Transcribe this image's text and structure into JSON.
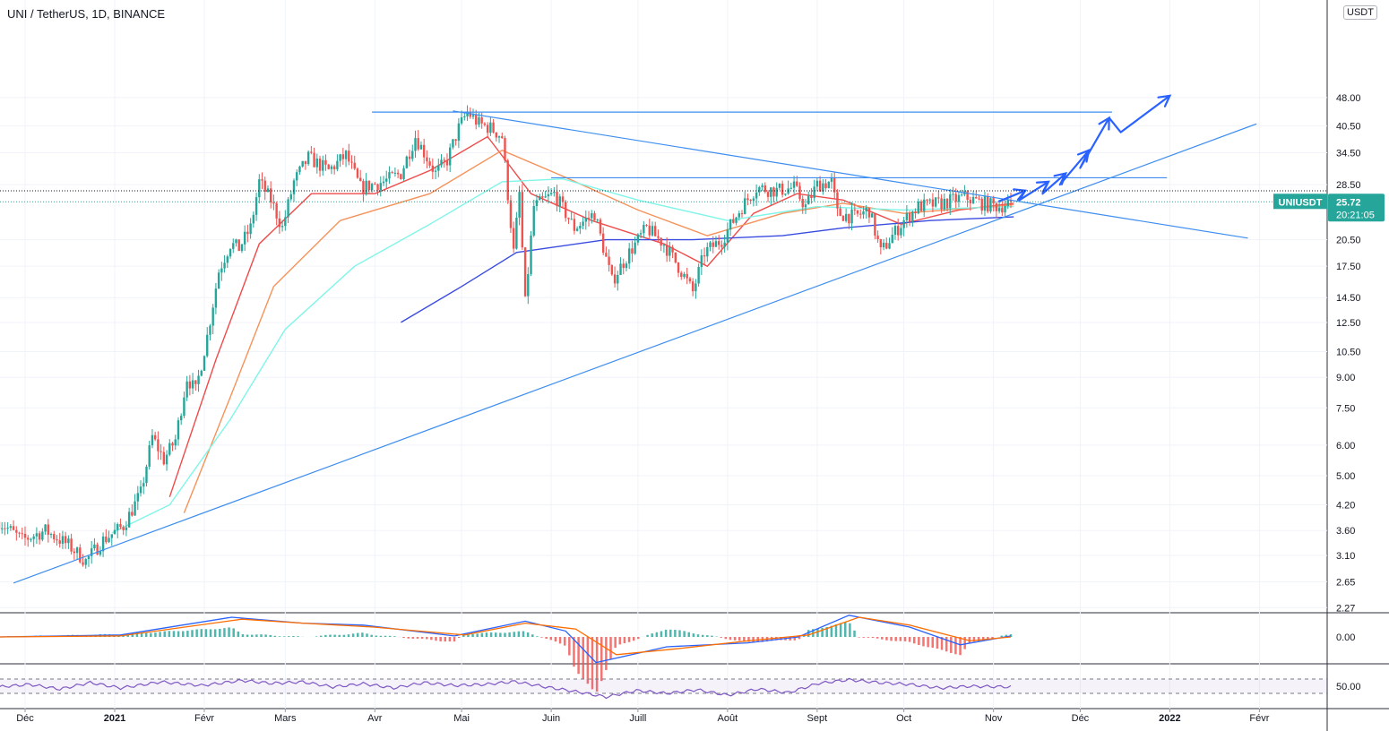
{
  "title": "UNI / TetherUS, 1D, BINANCE",
  "unit_button": "USDT",
  "colors": {
    "up": "#26a69a",
    "down": "#ef5350",
    "bg": "#ffffff",
    "grid": "#f0f3fa",
    "ema_red": "#ef4b4b",
    "ema_orange": "#f5925a",
    "ema_cyan": "#7ff5e8",
    "ma_blue": "#3a4ce0",
    "trend": "#3d8ef0",
    "arrows": "#2962ff",
    "macd": "#2962ff",
    "signal": "#ff6d00",
    "rsi": "#7e57c2"
  },
  "chart_data": [
    {
      "type": "candlestick",
      "symbol": "UNIUSDT",
      "price_scale": "log",
      "x_ticks": [
        "Déc",
        "2021",
        "Févr",
        "Mars",
        "Avr",
        "Mai",
        "Juin",
        "Juill",
        "Août",
        "Sept",
        "Oct",
        "Nov",
        "Déc",
        "2022",
        "Févr"
      ],
      "x_tick_dates": [
        "2020-12-01",
        "2021-01-01",
        "2021-02-01",
        "2021-03-01",
        "2021-04-01",
        "2021-05-01",
        "2021-06-01",
        "2021-07-01",
        "2021-08-01",
        "2021-09-01",
        "2021-10-01",
        "2021-11-01",
        "2021-12-01",
        "2022-01-01",
        "2022-02-01"
      ],
      "y_ticks": [
        "48.00",
        "40.50",
        "34.50",
        "28.50",
        "20.50",
        "17.50",
        "14.50",
        "12.50",
        "10.50",
        "9.00",
        "7.50",
        "6.00",
        "5.00",
        "4.20",
        "3.60",
        "3.10",
        "2.65",
        "2.27"
      ],
      "ylim": [
        2.27,
        60
      ],
      "last_price": {
        "label": "UNIUSDT",
        "value": "25.72",
        "countdown": "20:21:05"
      },
      "close_path": [
        [
          "2020-11-22",
          3.8
        ],
        [
          "2020-11-30",
          3.4
        ],
        [
          "2020-12-08",
          3.6
        ],
        [
          "2020-12-16",
          3.3
        ],
        [
          "2020-12-22",
          3.0
        ],
        [
          "2020-12-28",
          3.4
        ],
        [
          "2021-01-04",
          3.7
        ],
        [
          "2021-01-10",
          4.5
        ],
        [
          "2021-01-14",
          6.3
        ],
        [
          "2021-01-18",
          5.5
        ],
        [
          "2021-01-22",
          6.2
        ],
        [
          "2021-01-26",
          9.0
        ],
        [
          "2021-01-29",
          8.3
        ],
        [
          "2021-02-02",
          11.5
        ],
        [
          "2021-02-06",
          17.0
        ],
        [
          "2021-02-10",
          20.0
        ],
        [
          "2021-02-13",
          19.5
        ],
        [
          "2021-02-17",
          22.0
        ],
        [
          "2021-02-20",
          29.0
        ],
        [
          "2021-02-24",
          26.0
        ],
        [
          "2021-02-28",
          22.0
        ],
        [
          "2021-03-04",
          29.0
        ],
        [
          "2021-03-09",
          33.5
        ],
        [
          "2021-03-16",
          31.0
        ],
        [
          "2021-03-22",
          34.0
        ],
        [
          "2021-03-27",
          28.0
        ],
        [
          "2021-04-04",
          29.0
        ],
        [
          "2021-04-10",
          30.5
        ],
        [
          "2021-04-15",
          38.0
        ],
        [
          "2021-04-22",
          30.5
        ],
        [
          "2021-04-26",
          33.0
        ],
        [
          "2021-04-30",
          40.0
        ],
        [
          "2021-05-03",
          44.0
        ],
        [
          "2021-05-07",
          41.0
        ],
        [
          "2021-05-11",
          40.0
        ],
        [
          "2021-05-15",
          38.0
        ],
        [
          "2021-05-19",
          19.0
        ],
        [
          "2021-05-21",
          27.0
        ],
        [
          "2021-05-23",
          14.0
        ],
        [
          "2021-05-26",
          25.0
        ],
        [
          "2021-06-02",
          27.0
        ],
        [
          "2021-06-09",
          22.0
        ],
        [
          "2021-06-16",
          24.0
        ],
        [
          "2021-06-22",
          16.0
        ],
        [
          "2021-06-28",
          19.0
        ],
        [
          "2021-07-04",
          22.0
        ],
        [
          "2021-07-10",
          20.0
        ],
        [
          "2021-07-16",
          17.0
        ],
        [
          "2021-07-20",
          15.0
        ],
        [
          "2021-07-24",
          19.0
        ],
        [
          "2021-07-30",
          20.5
        ],
        [
          "2021-08-06",
          25.0
        ],
        [
          "2021-08-11",
          28.0
        ],
        [
          "2021-08-18",
          27.5
        ],
        [
          "2021-08-24",
          28.0
        ],
        [
          "2021-08-28",
          25.0
        ],
        [
          "2021-09-01",
          28.5
        ],
        [
          "2021-09-06",
          29.0
        ],
        [
          "2021-09-08",
          24.0
        ],
        [
          "2021-09-14",
          23.5
        ],
        [
          "2021-09-19",
          24.5
        ],
        [
          "2021-09-23",
          19.0
        ],
        [
          "2021-09-27",
          21.0
        ],
        [
          "2021-10-01",
          23.0
        ],
        [
          "2021-10-06",
          25.0
        ],
        [
          "2021-10-14",
          25.5
        ],
        [
          "2021-10-22",
          26.5
        ],
        [
          "2021-10-28",
          25.5
        ],
        [
          "2021-11-03",
          25.0
        ],
        [
          "2021-11-07",
          25.72
        ]
      ],
      "overlays": [
        {
          "name": "ema_red",
          "points": [
            [
              "2021-01-20",
              4.4
            ],
            [
              "2021-02-05",
              10.0
            ],
            [
              "2021-02-20",
              20.0
            ],
            [
              "2021-03-10",
              27.0
            ],
            [
              "2021-04-01",
              27.0
            ],
            [
              "2021-04-20",
              31.0
            ],
            [
              "2021-05-10",
              38.0
            ],
            [
              "2021-05-25",
              27.0
            ],
            [
              "2021-06-15",
              23.0
            ],
            [
              "2021-07-10",
              20.0
            ],
            [
              "2021-07-25",
              17.5
            ],
            [
              "2021-08-10",
              24.0
            ],
            [
              "2021-08-25",
              27.0
            ],
            [
              "2021-09-10",
              26.0
            ],
            [
              "2021-09-30",
              22.5
            ],
            [
              "2021-10-20",
              24.5
            ],
            [
              "2021-11-08",
              25.5
            ]
          ]
        },
        {
          "name": "ema_orange",
          "points": [
            [
              "2021-01-25",
              4.0
            ],
            [
              "2021-02-10",
              8.0
            ],
            [
              "2021-02-25",
              15.5
            ],
            [
              "2021-03-20",
              23.0
            ],
            [
              "2021-04-20",
              27.0
            ],
            [
              "2021-05-15",
              35.0
            ],
            [
              "2021-06-05",
              30.0
            ],
            [
              "2021-07-01",
              24.5
            ],
            [
              "2021-07-25",
              21.0
            ],
            [
              "2021-08-20",
              24.0
            ],
            [
              "2021-09-10",
              25.5
            ],
            [
              "2021-10-01",
              24.0
            ],
            [
              "2021-11-08",
              25.3
            ]
          ]
        },
        {
          "name": "ema_cyan",
          "points": [
            [
              "2020-12-31",
              3.55
            ],
            [
              "2021-01-20",
              4.2
            ],
            [
              "2021-02-10",
              7.0
            ],
            [
              "2021-03-01",
              12.0
            ],
            [
              "2021-03-25",
              17.5
            ],
            [
              "2021-04-20",
              22.5
            ],
            [
              "2021-05-15",
              29.0
            ],
            [
              "2021-06-05",
              29.5
            ],
            [
              "2021-07-01",
              26.0
            ],
            [
              "2021-08-01",
              23.0
            ],
            [
              "2021-09-01",
              25.0
            ],
            [
              "2021-10-01",
              24.5
            ],
            [
              "2021-11-08",
              25.0
            ]
          ]
        },
        {
          "name": "ma_blue",
          "points": [
            [
              "2021-04-10",
              12.5
            ],
            [
              "2021-05-01",
              15.5
            ],
            [
              "2021-05-20",
              19.0
            ],
            [
              "2021-06-20",
              20.5
            ],
            [
              "2021-07-20",
              20.5
            ],
            [
              "2021-08-20",
              21.0
            ],
            [
              "2021-09-10",
              22.0
            ],
            [
              "2021-10-10",
              23.0
            ],
            [
              "2021-11-08",
              23.5
            ]
          ]
        }
      ],
      "drawings": [
        {
          "name": "rising-support",
          "points": [
            [
              "2020-11-27",
              2.63
            ],
            [
              "2022-01-31",
              41.0
            ]
          ]
        },
        {
          "name": "falling-resistance",
          "points": [
            [
              "2021-04-28",
              44.3
            ],
            [
              "2022-01-28",
              20.7
            ]
          ]
        },
        {
          "name": "top-horizontal",
          "points": [
            [
              "2021-03-31",
              44.0
            ],
            [
              "2021-12-12",
              44.0
            ]
          ]
        },
        {
          "name": "mid-horizontal",
          "points": [
            [
              "2021-06-01",
              29.7
            ],
            [
              "2021-12-31",
              29.7
            ]
          ]
        }
      ],
      "projection_arrow": [
        [
          "2021-11-03",
          25.8
        ],
        [
          "2021-11-12",
          27.5
        ],
        [
          "2021-11-10",
          26.0
        ],
        [
          "2021-11-20",
          29.0
        ],
        [
          "2021-11-18",
          27.0
        ],
        [
          "2021-11-26",
          30.5
        ],
        [
          "2021-11-24",
          28.5
        ],
        [
          "2021-12-04",
          35.0
        ],
        [
          "2021-12-01",
          31.5
        ],
        [
          "2021-12-11",
          42.5
        ],
        [
          "2021-12-15",
          39.0
        ],
        [
          "2022-01-01",
          48.5
        ]
      ]
    },
    {
      "type": "macd",
      "y_ticks": [
        "0.00"
      ],
      "macd": [
        [
          0,
          0.0
        ],
        [
          0.12,
          0.1
        ],
        [
          0.23,
          1.0
        ],
        [
          0.3,
          0.7
        ],
        [
          0.36,
          0.6
        ],
        [
          0.45,
          0.05
        ],
        [
          0.52,
          0.8
        ],
        [
          0.56,
          0.3
        ],
        [
          0.59,
          -1.3
        ],
        [
          0.66,
          -0.5
        ],
        [
          0.74,
          -0.3
        ],
        [
          0.79,
          0.0
        ],
        [
          0.84,
          1.1
        ],
        [
          0.9,
          0.5
        ],
        [
          0.95,
          -0.4
        ],
        [
          1.0,
          0.05
        ]
      ],
      "signal": [
        [
          0,
          0.0
        ],
        [
          0.12,
          0.05
        ],
        [
          0.24,
          0.9
        ],
        [
          0.3,
          0.7
        ],
        [
          0.37,
          0.5
        ],
        [
          0.46,
          0.1
        ],
        [
          0.52,
          0.7
        ],
        [
          0.57,
          0.4
        ],
        [
          0.61,
          -0.9
        ],
        [
          0.67,
          -0.6
        ],
        [
          0.74,
          -0.2
        ],
        [
          0.8,
          0.1
        ],
        [
          0.85,
          1.0
        ],
        [
          0.9,
          0.6
        ],
        [
          0.96,
          -0.2
        ],
        [
          1.0,
          0.0
        ]
      ]
    },
    {
      "type": "rsi",
      "y_ticks": [
        "50.00"
      ],
      "levels": [
        70,
        30
      ],
      "values": [
        [
          0,
          48
        ],
        [
          0.03,
          55
        ],
        [
          0.06,
          42
        ],
        [
          0.09,
          60
        ],
        [
          0.12,
          45
        ],
        [
          0.16,
          62
        ],
        [
          0.2,
          52
        ],
        [
          0.24,
          66
        ],
        [
          0.27,
          58
        ],
        [
          0.3,
          62
        ],
        [
          0.33,
          48
        ],
        [
          0.36,
          57
        ],
        [
          0.39,
          45
        ],
        [
          0.42,
          60
        ],
        [
          0.45,
          52
        ],
        [
          0.48,
          55
        ],
        [
          0.51,
          63
        ],
        [
          0.54,
          48
        ],
        [
          0.57,
          35
        ],
        [
          0.6,
          20
        ],
        [
          0.63,
          38
        ],
        [
          0.66,
          30
        ],
        [
          0.69,
          40
        ],
        [
          0.72,
          25
        ],
        [
          0.75,
          42
        ],
        [
          0.78,
          32
        ],
        [
          0.81,
          58
        ],
        [
          0.84,
          68
        ],
        [
          0.87,
          60
        ],
        [
          0.9,
          55
        ],
        [
          0.93,
          45
        ],
        [
          0.96,
          50
        ],
        [
          1.0,
          48
        ]
      ]
    }
  ]
}
